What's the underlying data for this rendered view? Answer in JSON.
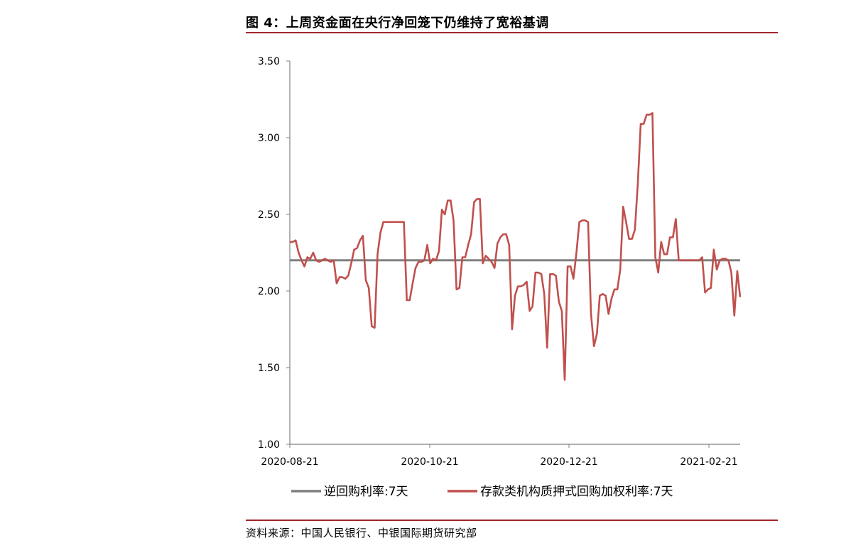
{
  "figure": {
    "title": "图 4：上周资金面在央行净回笼下仍维持了宽裕基调",
    "source": "资料来源：中国人民银行、中银国际期货研究部",
    "accent_color": "#a0262b"
  },
  "chart_data": {
    "type": "line",
    "ylim": [
      1.0,
      3.5
    ],
    "y_ticks": [
      "3.50",
      "3.00",
      "2.50",
      "2.00",
      "1.50",
      "1.00"
    ],
    "y_tick_values": [
      3.5,
      3.0,
      2.5,
      2.0,
      1.5,
      1.0
    ],
    "x_ticks": [
      "2020-08-21",
      "2020-10-21",
      "2020-12-21",
      "2021-02-21"
    ],
    "grid": false,
    "legend_position": "bottom",
    "series": [
      {
        "name": "逆回购利率:7天",
        "color": "#808080",
        "values": [
          2.2,
          2.2
        ]
      },
      {
        "name": "存款类机构质押式回购加权利率:7天",
        "color": "#c0504d",
        "values": [
          2.32,
          2.32,
          2.33,
          2.25,
          2.2,
          2.16,
          2.22,
          2.21,
          2.25,
          2.2,
          2.19,
          2.2,
          2.21,
          2.2,
          2.19,
          2.2,
          2.05,
          2.09,
          2.09,
          2.08,
          2.1,
          2.18,
          2.27,
          2.28,
          2.33,
          2.36,
          2.07,
          2.02,
          1.77,
          1.76,
          2.24,
          2.38,
          2.45,
          2.45,
          2.45,
          2.45,
          2.45,
          2.45,
          2.45,
          2.45,
          1.94,
          1.94,
          2.05,
          2.15,
          2.19,
          2.19,
          2.2,
          2.3,
          2.18,
          2.21,
          2.2,
          2.26,
          2.53,
          2.5,
          2.59,
          2.59,
          2.46,
          2.01,
          2.02,
          2.22,
          2.22,
          2.3,
          2.37,
          2.58,
          2.6,
          2.6,
          2.18,
          2.23,
          2.21,
          2.19,
          2.15,
          2.31,
          2.35,
          2.37,
          2.37,
          2.3,
          1.75,
          1.97,
          2.03,
          2.03,
          2.04,
          2.06,
          1.87,
          1.9,
          2.12,
          2.12,
          2.11,
          1.98,
          1.63,
          2.11,
          2.11,
          2.1,
          1.93,
          1.87,
          1.42,
          2.16,
          2.16,
          2.08,
          2.25,
          2.45,
          2.46,
          2.46,
          2.45,
          1.85,
          1.64,
          1.72,
          1.97,
          1.98,
          1.97,
          1.85,
          1.95,
          2.01,
          2.01,
          2.14,
          2.55,
          2.45,
          2.34,
          2.34,
          2.4,
          2.7,
          3.09,
          3.09,
          3.15,
          3.15,
          3.16,
          2.22,
          2.12,
          2.32,
          2.24,
          2.24,
          2.35,
          2.35,
          2.47,
          2.2,
          2.2,
          2.2,
          2.2,
          2.2,
          2.2,
          2.2,
          2.2,
          2.22,
          1.99,
          2.01,
          2.02,
          2.27,
          2.14,
          2.2,
          2.21,
          2.21,
          2.2,
          2.12,
          1.84,
          2.13,
          1.96
        ]
      }
    ]
  }
}
